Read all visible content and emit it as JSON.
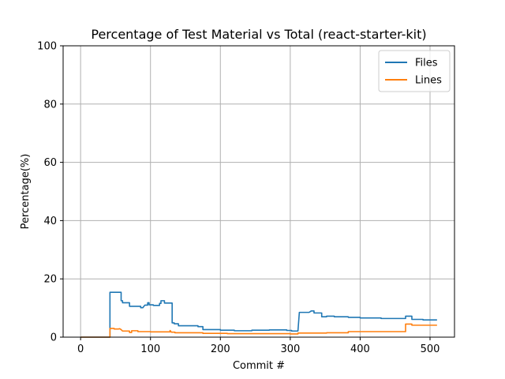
{
  "chart_data": {
    "type": "line",
    "title": "Percentage of Test Material vs Total (react-starter-kit)",
    "xlabel": "Commit #",
    "ylabel": "Percentage(%)",
    "xlim": [
      -25,
      535
    ],
    "ylim": [
      0,
      100
    ],
    "xticks": [
      0,
      100,
      200,
      300,
      400,
      500
    ],
    "yticks": [
      0,
      20,
      40,
      60,
      80,
      100
    ],
    "grid": true,
    "legend_position": "top-right",
    "series": [
      {
        "name": "Files",
        "color": "#1f77b4",
        "points": [
          [
            0,
            0
          ],
          [
            42,
            0
          ],
          [
            42,
            15.4
          ],
          [
            58,
            15.4
          ],
          [
            58,
            12.5
          ],
          [
            60,
            12.5
          ],
          [
            60,
            11.8
          ],
          [
            70,
            11.8
          ],
          [
            70,
            10.6
          ],
          [
            86,
            10.6
          ],
          [
            86,
            10.1
          ],
          [
            89,
            10.1
          ],
          [
            92,
            11.0
          ],
          [
            96,
            11.0
          ],
          [
            96,
            11.8
          ],
          [
            98,
            11.8
          ],
          [
            98,
            11.1
          ],
          [
            104,
            11.1
          ],
          [
            104,
            10.9
          ],
          [
            113,
            10.9
          ],
          [
            113,
            11.6
          ],
          [
            115,
            11.6
          ],
          [
            115,
            12.5
          ],
          [
            120,
            12.5
          ],
          [
            120,
            11.7
          ],
          [
            131,
            11.7
          ],
          [
            131,
            4.9
          ],
          [
            134,
            4.9
          ],
          [
            134,
            4.6
          ],
          [
            140,
            4.6
          ],
          [
            140,
            3.9
          ],
          [
            168,
            3.9
          ],
          [
            168,
            3.6
          ],
          [
            175,
            3.6
          ],
          [
            175,
            2.6
          ],
          [
            200,
            2.6
          ],
          [
            200,
            2.4
          ],
          [
            220,
            2.4
          ],
          [
            220,
            2.2
          ],
          [
            245,
            2.2
          ],
          [
            245,
            2.4
          ],
          [
            270,
            2.4
          ],
          [
            270,
            2.5
          ],
          [
            295,
            2.5
          ],
          [
            295,
            2.3
          ],
          [
            302,
            2.3
          ],
          [
            302,
            2.1
          ],
          [
            311,
            2.1
          ],
          [
            313,
            8.5
          ],
          [
            327,
            8.5
          ],
          [
            330,
            9.0
          ],
          [
            334,
            9.0
          ],
          [
            334,
            8.3
          ],
          [
            345,
            8.3
          ],
          [
            345,
            7.0
          ],
          [
            352,
            7.0
          ],
          [
            352,
            7.2
          ],
          [
            363,
            7.2
          ],
          [
            363,
            7.0
          ],
          [
            383,
            7.0
          ],
          [
            383,
            6.8
          ],
          [
            400,
            6.8
          ],
          [
            400,
            6.6
          ],
          [
            430,
            6.6
          ],
          [
            430,
            6.4
          ],
          [
            465,
            6.4
          ],
          [
            465,
            7.2
          ],
          [
            474,
            7.2
          ],
          [
            474,
            6.1
          ],
          [
            490,
            6.1
          ],
          [
            490,
            5.9
          ],
          [
            510,
            5.9
          ]
        ]
      },
      {
        "name": "Lines",
        "color": "#ff7f0e",
        "points": [
          [
            0,
            0
          ],
          [
            42,
            0
          ],
          [
            42,
            3.0
          ],
          [
            48,
            3.0
          ],
          [
            48,
            2.8
          ],
          [
            54,
            2.8
          ],
          [
            56,
            2.9
          ],
          [
            58,
            2.6
          ],
          [
            60,
            2.1
          ],
          [
            70,
            2.1
          ],
          [
            70,
            1.6
          ],
          [
            73,
            1.6
          ],
          [
            73,
            2.2
          ],
          [
            82,
            2.2
          ],
          [
            82,
            1.9
          ],
          [
            100,
            1.9
          ],
          [
            100,
            1.8
          ],
          [
            128,
            1.8
          ],
          [
            128,
            2.3
          ],
          [
            130,
            1.7
          ],
          [
            135,
            1.7
          ],
          [
            135,
            1.5
          ],
          [
            175,
            1.5
          ],
          [
            175,
            1.3
          ],
          [
            210,
            1.3
          ],
          [
            210,
            1.2
          ],
          [
            300,
            1.2
          ],
          [
            300,
            1.1
          ],
          [
            311,
            1.1
          ],
          [
            311,
            1.4
          ],
          [
            352,
            1.4
          ],
          [
            352,
            1.5
          ],
          [
            383,
            1.5
          ],
          [
            383,
            1.9
          ],
          [
            465,
            1.9
          ],
          [
            465,
            4.5
          ],
          [
            474,
            4.5
          ],
          [
            474,
            4.1
          ],
          [
            510,
            4.1
          ]
        ]
      }
    ]
  }
}
